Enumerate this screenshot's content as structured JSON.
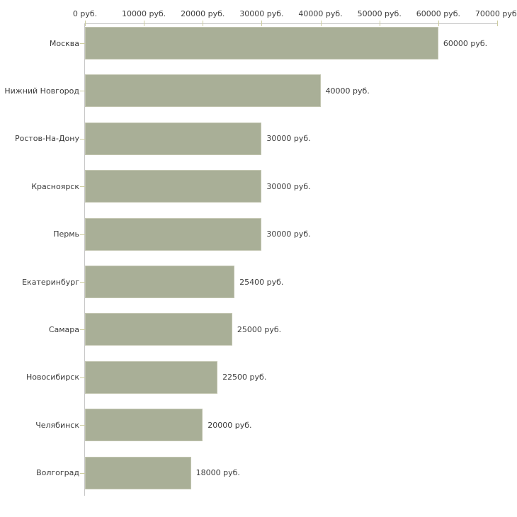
{
  "chart_data": {
    "type": "bar",
    "orientation": "horizontal",
    "title": "",
    "xlabel": "",
    "ylabel": "",
    "unit": "руб.",
    "categories": [
      "Москва",
      "Нижний Новгород",
      "Ростов-На-Дону",
      "Красноярск",
      "Пермь",
      "Екатеринбург",
      "Самара",
      "Новосибирск",
      "Челябинск",
      "Волгоград"
    ],
    "values": [
      60000,
      40000,
      30000,
      30000,
      30000,
      25400,
      25000,
      22500,
      20000,
      18000
    ],
    "value_labels": [
      "60000 руб.",
      "40000 руб.",
      "30000 руб.",
      "30000 руб.",
      "30000 руб.",
      "25400 руб.",
      "25000 руб.",
      "22500 руб.",
      "20000 руб.",
      "18000 руб."
    ],
    "x_axis": {
      "position": "top",
      "xlim": [
        0,
        70000
      ],
      "ticks": [
        0,
        10000,
        20000,
        30000,
        40000,
        50000,
        60000,
        70000
      ],
      "tick_labels": [
        "0 руб.",
        "10000 руб.",
        "20000 руб.",
        "30000 руб.",
        "40000 руб.",
        "50000 руб.",
        "60000 руб.",
        "70000 руб."
      ]
    },
    "grid": false,
    "legend": false,
    "colors": {
      "bar_fill": "#a9af97",
      "bar_border": "#c2c5b0",
      "axis_line": "#c6c6c6",
      "tick_mark": "#cdcda0",
      "text": "#3c3c3c",
      "background": "#ffffff"
    }
  }
}
